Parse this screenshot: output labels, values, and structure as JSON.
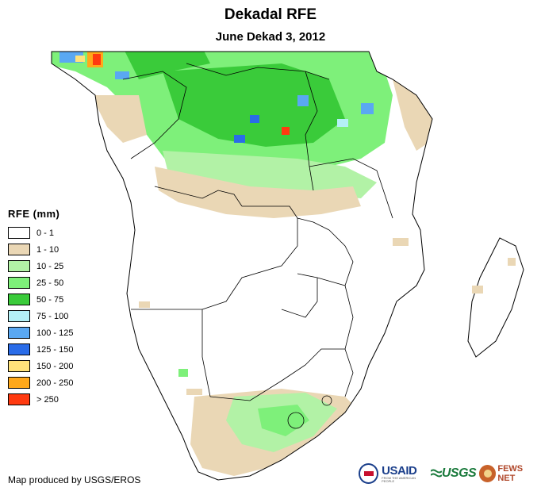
{
  "header": {
    "title": "Dekadal RFE",
    "subtitle": "June Dekad 3, 2012"
  },
  "legend": {
    "title": "RFE (mm)",
    "items": [
      {
        "label": "0 - 1",
        "color": "#ffffff"
      },
      {
        "label": "1 - 10",
        "color": "#ead7b5"
      },
      {
        "label": "10 - 25",
        "color": "#b2f2a6"
      },
      {
        "label": "25 - 50",
        "color": "#7ef07a"
      },
      {
        "label": "50 - 75",
        "color": "#3acb3a"
      },
      {
        "label": "75 - 100",
        "color": "#b4f0f6"
      },
      {
        "label": "100 - 125",
        "color": "#5aa8f2"
      },
      {
        "label": "125 - 150",
        "color": "#2a6ce8"
      },
      {
        "label": "150 - 200",
        "color": "#ffe27a"
      },
      {
        "label": "200 - 250",
        "color": "#ffa81a"
      },
      {
        "label": "> 250",
        "color": "#ff3a10"
      }
    ]
  },
  "footer": {
    "credit": "Map produced by USGS/EROS"
  },
  "logos": {
    "usaid": "USAID",
    "usaid_sub": "FROM THE AMERICAN PEOPLE",
    "usgs": "USGS",
    "fews": "FEWS NET"
  },
  "colors": {
    "border": "#000000",
    "sand": "#ead7b5",
    "light_green": "#b2f2a6",
    "green": "#7ef07a",
    "dark_green": "#3acb3a",
    "light_blue": "#b4f0f6",
    "blue": "#5aa8f2",
    "deep_blue": "#2a6ce8"
  },
  "icons": [
    "usaid-seal-icon",
    "usgs-wave-icon",
    "fews-globe-icon"
  ]
}
